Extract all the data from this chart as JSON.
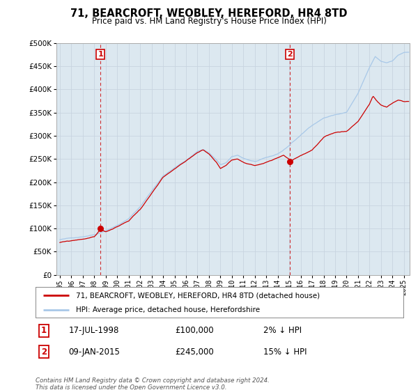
{
  "title": "71, BEARCROFT, WEOBLEY, HEREFORD, HR4 8TD",
  "subtitle": "Price paid vs. HM Land Registry's House Price Index (HPI)",
  "legend_line1": "71, BEARCROFT, WEOBLEY, HEREFORD, HR4 8TD (detached house)",
  "legend_line2": "HPI: Average price, detached house, Herefordshire",
  "sale1_date": "17-JUL-1998",
  "sale1_price": 100000,
  "sale1_note": "2% ↓ HPI",
  "sale2_date": "09-JAN-2015",
  "sale2_price": 245000,
  "sale2_note": "15% ↓ HPI",
  "footer": "Contains HM Land Registry data © Crown copyright and database right 2024.\nThis data is licensed under the Open Government Licence v3.0.",
  "hpi_color": "#a8c8e8",
  "price_color": "#cc0000",
  "marker_color": "#cc0000",
  "grid_color": "#c8d4e0",
  "background_color": "#ffffff",
  "plot_bg_color": "#dce8f0",
  "ylim": [
    0,
    500000
  ],
  "yticks": [
    0,
    50000,
    100000,
    150000,
    200000,
    250000,
    300000,
    350000,
    400000,
    450000,
    500000
  ],
  "xlim_start": 1994.7,
  "xlim_end": 2025.5,
  "xticks": [
    1995,
    1996,
    1997,
    1998,
    1999,
    2000,
    2001,
    2002,
    2003,
    2004,
    2005,
    2006,
    2007,
    2008,
    2009,
    2010,
    2011,
    2012,
    2013,
    2014,
    2015,
    2016,
    2017,
    2018,
    2019,
    2020,
    2021,
    2022,
    2023,
    2024,
    2025
  ],
  "sale1_x": 1998.54,
  "sale2_x": 2015.03,
  "vline1_x": 1998.54,
  "vline2_x": 2015.03
}
